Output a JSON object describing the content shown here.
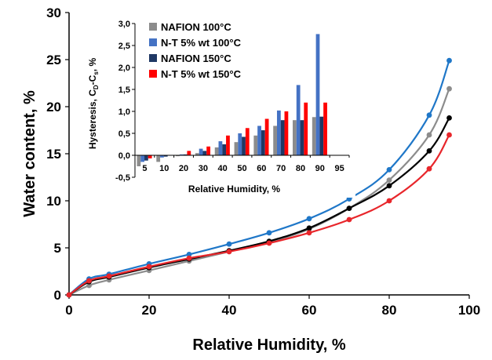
{
  "chart_data": [
    {
      "type": "line",
      "xlabel": "Relative Humidity, %",
      "ylabel": "Water content, %",
      "xlim": [
        0,
        100
      ],
      "ylim": [
        0,
        30
      ],
      "xticks": [
        "0",
        "20",
        "40",
        "60",
        "80",
        "100"
      ],
      "yticks": [
        "0",
        "5",
        "10",
        "15",
        "20",
        "25",
        "30"
      ],
      "grid": false,
      "series": [
        {
          "color": "#1f77c8",
          "x": [
            0,
            5,
            10,
            20,
            30,
            40,
            50,
            60,
            70,
            80,
            90,
            95
          ],
          "y": [
            0,
            1.7,
            2.2,
            3.3,
            4.3,
            5.4,
            6.6,
            8.1,
            10.2,
            13.3,
            19.1,
            24.9
          ]
        },
        {
          "color": "#8c8c8c",
          "x": [
            0,
            5,
            10,
            20,
            30,
            40,
            50,
            60,
            70,
            80,
            90,
            95
          ],
          "y": [
            0,
            1.0,
            1.6,
            2.6,
            3.6,
            4.6,
            5.6,
            7.0,
            9.2,
            12.2,
            17.0,
            21.9
          ]
        },
        {
          "color": "#000000",
          "x": [
            0,
            5,
            10,
            20,
            30,
            40,
            50,
            60,
            70,
            80,
            90,
            95
          ],
          "y": [
            0,
            1.4,
            1.9,
            2.9,
            3.8,
            4.7,
            5.7,
            7.1,
            9.2,
            11.6,
            15.3,
            18.8
          ]
        },
        {
          "color": "#e8262b",
          "x": [
            0,
            5,
            10,
            20,
            30,
            40,
            50,
            60,
            70,
            80,
            90,
            95
          ],
          "y": [
            0,
            1.5,
            2.0,
            3.0,
            3.9,
            4.6,
            5.5,
            6.6,
            8.0,
            10.0,
            13.4,
            17.0
          ]
        }
      ]
    },
    {
      "type": "bar",
      "xlabel": "Relative Humidity, %",
      "ylabel": "Hysteresis, C",
      "ylabel_sub1": "D",
      "ylabel_mid": "-C",
      "ylabel_sub2": "s",
      "ylabel_suffix": ", %",
      "ylim": [
        -0.5,
        3.0
      ],
      "yticks": [
        "-0,5",
        "0,0",
        "0,5",
        "1,0",
        "1,5",
        "2,0",
        "2,5",
        "3,0"
      ],
      "categories": [
        "5",
        "10",
        "20",
        "30",
        "40",
        "50",
        "60",
        "70",
        "80",
        "90",
        "95"
      ],
      "series": [
        {
          "name": "NAFION 100°C",
          "color": "#8c8c8c",
          "values": [
            -0.25,
            -0.15,
            -0.02,
            0.05,
            0.18,
            0.3,
            0.45,
            0.67,
            0.8,
            0.87,
            0
          ]
        },
        {
          "name": "N-T 5% wt 100°C",
          "color": "#4472c4",
          "values": [
            -0.15,
            -0.05,
            0.02,
            0.15,
            0.32,
            0.5,
            0.67,
            1.02,
            1.6,
            2.76,
            0
          ]
        },
        {
          "name": "NAFION 150°C",
          "color": "#1f3864",
          "values": [
            -0.12,
            -0.03,
            0.02,
            0.1,
            0.25,
            0.42,
            0.57,
            0.8,
            0.8,
            0.88,
            0
          ]
        },
        {
          "name": "N-T 5% wt 150°C",
          "color": "#ff0000",
          "values": [
            -0.07,
            0.0,
            0.1,
            0.2,
            0.45,
            0.62,
            0.83,
            1.0,
            1.2,
            1.2,
            0
          ]
        }
      ],
      "legend": "top-left"
    }
  ]
}
